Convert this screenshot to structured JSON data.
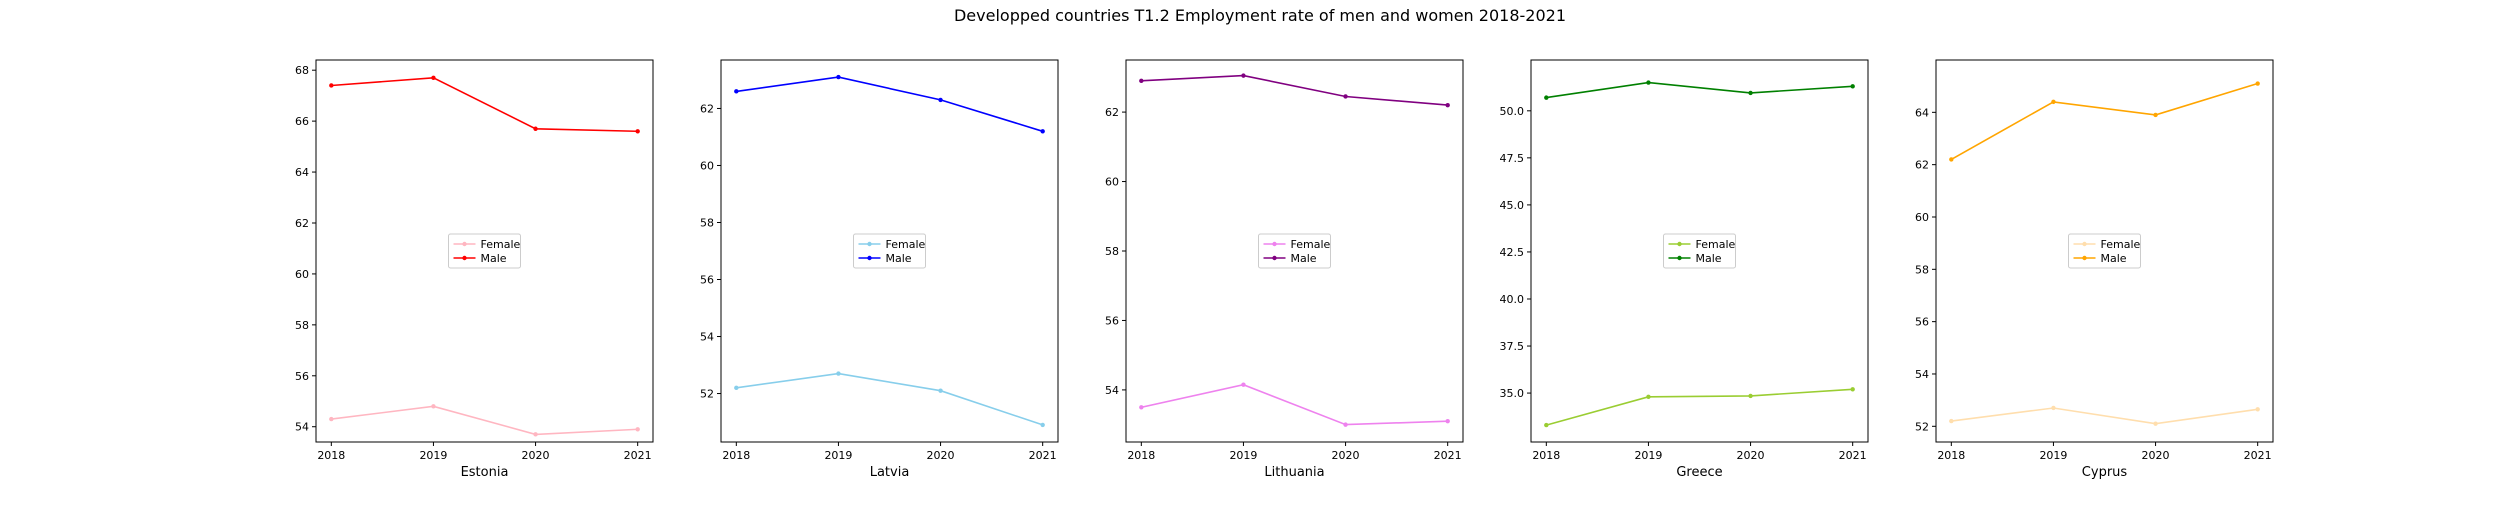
{
  "title": "Developped countries T1.2 Employment rate of men and women 2018-2021",
  "chart_data": [
    {
      "type": "line",
      "xlabel": "Estonia",
      "x": [
        2018,
        2019,
        2020,
        2021
      ],
      "ylim": [
        53.4,
        68.4
      ],
      "yticks": [
        54,
        56,
        58,
        60,
        62,
        64,
        66,
        68
      ],
      "ytick_labels": [
        "54",
        "56",
        "58",
        "60",
        "62",
        "64",
        "66",
        "68"
      ],
      "legend": "center",
      "series": [
        {
          "name": "Female",
          "color": "#ffb6c1",
          "values": [
            54.3,
            54.8,
            53.7,
            53.9
          ]
        },
        {
          "name": "Male",
          "color": "#ff0000",
          "values": [
            67.4,
            67.7,
            65.7,
            65.6
          ]
        }
      ]
    },
    {
      "type": "line",
      "xlabel": "Latvia",
      "x": [
        2018,
        2019,
        2020,
        2021
      ],
      "ylim": [
        50.3,
        63.7
      ],
      "yticks": [
        52,
        54,
        56,
        58,
        60,
        62
      ],
      "ytick_labels": [
        "52",
        "54",
        "56",
        "58",
        "60",
        "62"
      ],
      "legend": "center",
      "series": [
        {
          "name": "Female",
          "color": "#87ceeb",
          "values": [
            52.2,
            52.7,
            52.1,
            50.9
          ]
        },
        {
          "name": "Male",
          "color": "#0000ff",
          "values": [
            62.6,
            63.1,
            62.3,
            61.2
          ]
        }
      ]
    },
    {
      "type": "line",
      "xlabel": "Lithuania",
      "x": [
        2018,
        2019,
        2020,
        2021
      ],
      "ylim": [
        52.5,
        63.5
      ],
      "yticks": [
        54,
        56,
        58,
        60,
        62
      ],
      "ytick_labels": [
        "54",
        "56",
        "58",
        "60",
        "62"
      ],
      "legend": "center",
      "series": [
        {
          "name": "Female",
          "color": "#ee82ee",
          "values": [
            53.5,
            54.15,
            53.0,
            53.1
          ]
        },
        {
          "name": "Male",
          "color": "#800080",
          "values": [
            62.9,
            63.05,
            62.45,
            62.2
          ]
        }
      ]
    },
    {
      "type": "line",
      "xlabel": "Greece",
      "x": [
        2018,
        2019,
        2020,
        2021
      ],
      "ylim": [
        32.4,
        52.7
      ],
      "yticks": [
        35.0,
        37.5,
        40.0,
        42.5,
        45.0,
        47.5,
        50.0
      ],
      "ytick_labels": [
        "35.0",
        "37.5",
        "40.0",
        "42.5",
        "45.0",
        "47.5",
        "50.0"
      ],
      "legend": "center",
      "series": [
        {
          "name": "Female",
          "color": "#9acd32",
          "values": [
            33.3,
            34.8,
            34.85,
            35.2
          ]
        },
        {
          "name": "Male",
          "color": "#008000",
          "values": [
            50.7,
            51.5,
            50.95,
            51.3
          ]
        }
      ]
    },
    {
      "type": "line",
      "xlabel": "Cyprus",
      "x": [
        2018,
        2019,
        2020,
        2021
      ],
      "ylim": [
        51.4,
        66.0
      ],
      "yticks": [
        52,
        54,
        56,
        58,
        60,
        62,
        64
      ],
      "ytick_labels": [
        "52",
        "54",
        "56",
        "58",
        "60",
        "62",
        "64"
      ],
      "legend": "center",
      "series": [
        {
          "name": "Female",
          "color": "#ffdead",
          "values": [
            52.2,
            52.7,
            52.1,
            52.65
          ]
        },
        {
          "name": "Male",
          "color": "#ffa500",
          "values": [
            62.2,
            64.4,
            63.9,
            65.1
          ]
        }
      ]
    }
  ]
}
